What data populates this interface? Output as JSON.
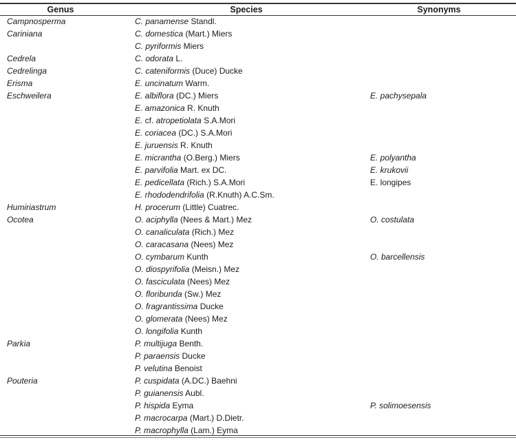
{
  "headers": {
    "genus": "Genus",
    "species": "Species",
    "synonyms": "Synonyms"
  },
  "rows": [
    {
      "genus": "Campnosperma",
      "species": [
        {
          "t": "C. panamense",
          "i": true
        },
        {
          "t": " Standl.",
          "i": false
        }
      ],
      "synonym": null
    },
    {
      "genus": "Cariniana",
      "species": [
        {
          "t": "C. domestica",
          "i": true
        },
        {
          "t": " (Mart.) Miers",
          "i": false
        }
      ],
      "synonym": null
    },
    {
      "genus": "",
      "species": [
        {
          "t": "C. pyriformis",
          "i": true
        },
        {
          "t": " Miers",
          "i": false
        }
      ],
      "synonym": null
    },
    {
      "genus": "Cedrela",
      "species": [
        {
          "t": "C. odorata",
          "i": true
        },
        {
          "t": " L.",
          "i": false
        }
      ],
      "synonym": null
    },
    {
      "genus": "Cedrelinga",
      "species": [
        {
          "t": "C. cateniformis",
          "i": true
        },
        {
          "t": " (Duce) Ducke",
          "i": false
        }
      ],
      "synonym": null
    },
    {
      "genus": "Erisma",
      "species": [
        {
          "t": "E. uncinatum",
          "i": true
        },
        {
          "t": " Warm.",
          "i": false
        }
      ],
      "synonym": null
    },
    {
      "genus": "Eschweilera",
      "species": [
        {
          "t": "E. albiflora",
          "i": true
        },
        {
          "t": " (DC.) Miers",
          "i": false
        }
      ],
      "synonym": {
        "t": "E. pachysepala",
        "i": true
      }
    },
    {
      "genus": "",
      "species": [
        {
          "t": "E. amazonica",
          "i": true
        },
        {
          "t": " R. Knuth",
          "i": false
        }
      ],
      "synonym": null
    },
    {
      "genus": "",
      "species": [
        {
          "t": "E.",
          "i": true
        },
        {
          "t": " cf. ",
          "i": false
        },
        {
          "t": "atropetiolata",
          "i": true
        },
        {
          "t": " S.A.Mori",
          "i": false
        }
      ],
      "synonym": null
    },
    {
      "genus": "",
      "species": [
        {
          "t": "E. coriacea",
          "i": true
        },
        {
          "t": " (DC.) S.A.Mori",
          "i": false
        }
      ],
      "synonym": null
    },
    {
      "genus": "",
      "species": [
        {
          "t": "E. juruensis",
          "i": true
        },
        {
          "t": " R. Knuth",
          "i": false
        }
      ],
      "synonym": null
    },
    {
      "genus": "",
      "species": [
        {
          "t": "E. micrantha",
          "i": true
        },
        {
          "t": " (O.Berg.) Miers",
          "i": false
        }
      ],
      "synonym": {
        "t": "E. polyantha",
        "i": true
      }
    },
    {
      "genus": "",
      "species": [
        {
          "t": "E. parvifolia",
          "i": true
        },
        {
          "t": " Mart. ex DC.",
          "i": false
        }
      ],
      "synonym": {
        "t": "E. krukovii",
        "i": true
      }
    },
    {
      "genus": "",
      "species": [
        {
          "t": "E. pedicellata",
          "i": true
        },
        {
          "t": " (Rich.) S.A.Mori",
          "i": false
        }
      ],
      "synonym": {
        "t": "E. longipes",
        "i": false
      }
    },
    {
      "genus": "",
      "species": [
        {
          "t": "E. rhododendrifolia",
          "i": true
        },
        {
          "t": " (R.Knuth) A.C.Sm.",
          "i": false
        }
      ],
      "synonym": null
    },
    {
      "genus": "Humiriastrum",
      "species": [
        {
          "t": "H. procerum",
          "i": true
        },
        {
          "t": " (Little) Cuatrec.",
          "i": false
        }
      ],
      "synonym": null
    },
    {
      "genus": "Ocotea",
      "species": [
        {
          "t": "O. aciphylla",
          "i": true
        },
        {
          "t": " (Nees & Mart.) Mez",
          "i": false
        }
      ],
      "synonym": {
        "t": "O. costulata",
        "i": true
      }
    },
    {
      "genus": "",
      "species": [
        {
          "t": "O. canaliculata",
          "i": true
        },
        {
          "t": " (Rich.) Mez",
          "i": false
        }
      ],
      "synonym": null
    },
    {
      "genus": "",
      "species": [
        {
          "t": "O. caracasana",
          "i": true
        },
        {
          "t": " (Nees) Mez",
          "i": false
        }
      ],
      "synonym": null
    },
    {
      "genus": "",
      "species": [
        {
          "t": "O. cymbarum",
          "i": true
        },
        {
          "t": " Kunth",
          "i": false
        }
      ],
      "synonym": {
        "t": "O. barcellensis",
        "i": true
      }
    },
    {
      "genus": "",
      "species": [
        {
          "t": "O. diospyrifolia",
          "i": true
        },
        {
          "t": " (Meisn.) Mez",
          "i": false
        }
      ],
      "synonym": null
    },
    {
      "genus": "",
      "species": [
        {
          "t": "O. fasciculata",
          "i": true
        },
        {
          "t": " (Nees) Mez",
          "i": false
        }
      ],
      "synonym": null
    },
    {
      "genus": "",
      "species": [
        {
          "t": "O. floribunda",
          "i": true
        },
        {
          "t": " (Sw.) Mez",
          "i": false
        }
      ],
      "synonym": null
    },
    {
      "genus": "",
      "species": [
        {
          "t": "O. fragrantissima",
          "i": true
        },
        {
          "t": " Ducke",
          "i": false
        }
      ],
      "synonym": null
    },
    {
      "genus": "",
      "species": [
        {
          "t": "O. glomerata",
          "i": true
        },
        {
          "t": " (Nees) Mez",
          "i": false
        }
      ],
      "synonym": null
    },
    {
      "genus": "",
      "species": [
        {
          "t": "O. longifolia",
          "i": true
        },
        {
          "t": " Kunth",
          "i": false
        }
      ],
      "synonym": null
    },
    {
      "genus": "Parkia",
      "species": [
        {
          "t": "P. multijuga",
          "i": true
        },
        {
          "t": " Benth.",
          "i": false
        }
      ],
      "synonym": null
    },
    {
      "genus": "",
      "species": [
        {
          "t": "P. paraensis",
          "i": true
        },
        {
          "t": " Ducke",
          "i": false
        }
      ],
      "synonym": null
    },
    {
      "genus": "",
      "species": [
        {
          "t": "P. velutina",
          "i": true
        },
        {
          "t": " Benoist",
          "i": false
        }
      ],
      "synonym": null
    },
    {
      "genus": "Pouteria",
      "species": [
        {
          "t": "P. cuspidata",
          "i": true
        },
        {
          "t": " (A.DC.) Baehni",
          "i": false
        }
      ],
      "synonym": null
    },
    {
      "genus": "",
      "species": [
        {
          "t": "P. guianensis",
          "i": true
        },
        {
          "t": " Aubl.",
          "i": false
        }
      ],
      "synonym": null
    },
    {
      "genus": "",
      "species": [
        {
          "t": "P. hispida",
          "i": true
        },
        {
          "t": " Eyma",
          "i": false
        }
      ],
      "synonym": {
        "t": "P. solimoesensis",
        "i": true
      }
    },
    {
      "genus": "",
      "species": [
        {
          "t": "P. macrocarpa",
          "i": true
        },
        {
          "t": " (Mart.) D.Dietr.",
          "i": false
        }
      ],
      "synonym": null
    },
    {
      "genus": "",
      "species": [
        {
          "t": "P. macrophylla",
          "i": true
        },
        {
          "t": " (Lam.) Eyma",
          "i": false
        }
      ],
      "synonym": null
    }
  ]
}
